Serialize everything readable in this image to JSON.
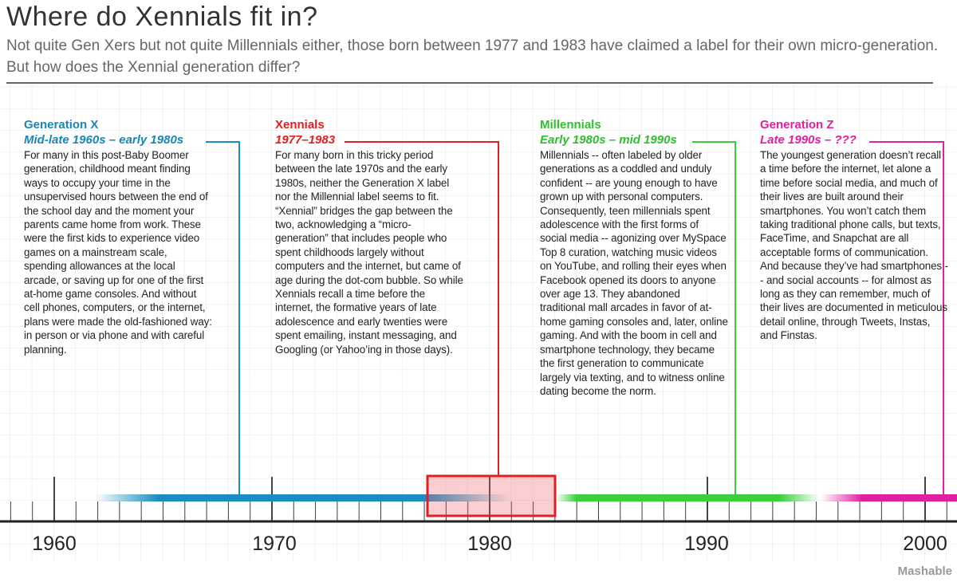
{
  "header": {
    "title": "Where do Xennials fit in?",
    "subtitle": "Not quite Gen Xers but not quite Millennials either, those born between 1977 and 1983 have claimed a label for their own micro-generation. But how does the Xennial generation differ?"
  },
  "generations": [
    {
      "name": "Generation X",
      "span": "Mid-late 1960s – early 1980s",
      "text": "For many in this post-Baby Boomer generation, childhood meant finding ways to occupy your time in the unsupervised hours between the end of the school day and the moment your parents came home from work. These were the first kids to experience video games on a mainstream scale, spending allowances at the local arcade, or saving up for one of the first at-home game consoles. And without cell phones, computers, or the internet, plans were made the old-fashioned way: in person or via phone and with careful planning."
    },
    {
      "name": "Xennials",
      "span": "1977–1983",
      "text": "For many born in this tricky period between the late 1970s and the early 1980s, neither the Generation X label nor the Millennial label seems to fit. “Xennial” bridges the gap between the two, acknowledging a “micro-generation” that includes people who spent childhoods largely without computers and the internet, but came of age during the dot-com bubble. So while Xennials recall a time before the internet, the formative years of late adolescence and early twenties were spent emailing, instant messaging, and Googling (or Yahoo’ing in those days)."
    },
    {
      "name": "Millennials",
      "span": "Early 1980s – mid 1990s",
      "text": "Millennials -- often labeled by older generations as a coddled and unduly confident -- are young enough to have grown up with personal computers. Consequently, teen millennials spent adolescence with the first forms of social media -- agonizing over MySpace Top 8 curation, watching music videos on YouTube, and rolling their eyes when Facebook opened its doors to anyone over age 13. They abandoned traditional mall arcades in favor of at-home gaming consoles and, later, online gaming. And with the boom in cell and smartphone technology, they became the first generation to communicate largely via texting, and to witness online dating become the norm."
    },
    {
      "name": "Generation Z",
      "span": "Late 1990s – ???",
      "text": "The youngest generation doesn’t recall a time before the internet, let alone a time before social media, and much of their lives are built around their smartphones. You won’t catch them taking traditional phone calls, but texts, FaceTime, and Snapchat are all acceptable forms of communication. And because they’ve had smartphones -- and social accounts -- for almost as long as they can remember, much of their lives are documented in meticulous detail online, through Tweets, Instas, and Finstas."
    }
  ],
  "axis": {
    "labels": [
      "1960",
      "1970",
      "1980",
      "1990",
      "2000"
    ]
  },
  "footer": {
    "brand": "Mashable"
  }
}
